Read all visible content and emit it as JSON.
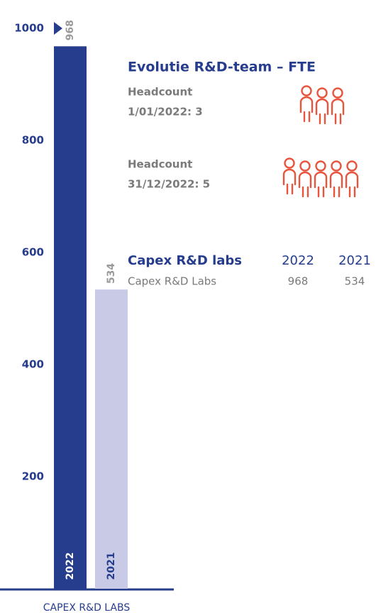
{
  "chart_data": {
    "type": "bar",
    "x_label": "CAPEX R&D LABS",
    "categories": [
      "2022",
      "2021"
    ],
    "values": [
      968,
      534
    ],
    "colors": [
      "#253d8c",
      "#c8cae6"
    ],
    "category_label_colors": [
      "#ffffff",
      "#253d8c"
    ],
    "ylim": [
      0,
      1000
    ],
    "yticks": [
      200,
      400,
      600,
      800,
      1000
    ],
    "grid": false
  },
  "panel": {
    "title": "Evolutie R&D-team – FTE",
    "headcounts": [
      [
        "Headcount",
        "1/01/2022: 3"
      ],
      [
        "Headcount",
        "31/12/2022: 5"
      ]
    ],
    "table": {
      "header": [
        "Capex R&D labs",
        "2022",
        "2021"
      ],
      "rows": [
        [
          "Capex R&D Labs",
          968,
          534
        ]
      ]
    }
  }
}
